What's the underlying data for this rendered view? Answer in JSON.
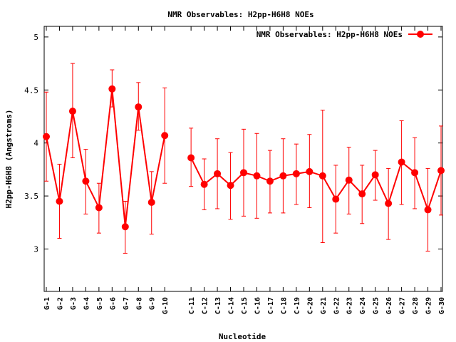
{
  "chart_data": {
    "type": "line",
    "title": "NMR Observables: H2pp-H6H8 NOEs",
    "xlabel": "Nucleotide",
    "ylabel": "H2pp-H6H8 (Angstroms)",
    "ylim": [
      2.6,
      5.1
    ],
    "yticks": [
      3,
      3.5,
      4,
      4.5,
      5
    ],
    "ytick_labels": [
      "3",
      "3.5",
      "4",
      "4.5",
      "5"
    ],
    "legend_position": "top-right",
    "grid": false,
    "series": [
      {
        "name": "NMR Observables: H2pp-H6H8 NOEs",
        "color": "#ff0000",
        "segments": [
          {
            "x": [
              1,
              2,
              3,
              4,
              5,
              6,
              7,
              8,
              9,
              10
            ],
            "labels": [
              "G-1",
              "G-2",
              "G-3",
              "G-4",
              "G-5",
              "G-6",
              "G-7",
              "G-8",
              "G-9",
              "G-10"
            ],
            "values": [
              4.06,
              3.45,
              4.3,
              3.64,
              3.39,
              4.51,
              3.21,
              4.34,
              3.44,
              4.07
            ],
            "err_low": [
              3.64,
              3.1,
              3.86,
              3.33,
              3.15,
              4.34,
              2.96,
              4.12,
              3.14,
              3.62
            ],
            "err_high": [
              4.48,
              3.8,
              4.75,
              3.94,
              3.62,
              4.69,
              3.45,
              4.57,
              3.73,
              4.52
            ]
          },
          {
            "x": [
              12,
              13,
              14,
              15,
              16,
              17,
              18,
              19,
              20,
              21,
              22,
              23,
              24,
              25,
              26,
              27,
              28,
              29,
              30,
              31
            ],
            "labels": [
              "C-11",
              "C-12",
              "C-13",
              "C-14",
              "C-15",
              "C-16",
              "C-17",
              "C-18",
              "C-19",
              "C-20",
              "G-21",
              "G-22",
              "G-23",
              "G-24",
              "G-25",
              "G-26",
              "G-27",
              "G-28",
              "G-29",
              "G-30"
            ],
            "values": [
              3.86,
              3.61,
              3.71,
              3.6,
              3.72,
              3.69,
              3.64,
              3.69,
              3.71,
              3.73,
              3.69,
              3.47,
              3.65,
              3.52,
              3.7,
              3.43,
              3.82,
              3.72,
              3.37,
              3.74
            ],
            "err_low": [
              3.59,
              3.37,
              3.38,
              3.28,
              3.31,
              3.29,
              3.34,
              3.34,
              3.42,
              3.39,
              3.06,
              3.15,
              3.33,
              3.24,
              3.46,
              3.09,
              3.42,
              3.38,
              2.98,
              3.32
            ],
            "err_high": [
              4.14,
              3.85,
              4.04,
              3.91,
              4.13,
              4.09,
              3.93,
              4.04,
              3.99,
              4.08,
              4.31,
              3.79,
              3.96,
              3.79,
              3.93,
              3.76,
              4.21,
              4.05,
              3.76,
              4.16
            ]
          }
        ]
      }
    ]
  }
}
